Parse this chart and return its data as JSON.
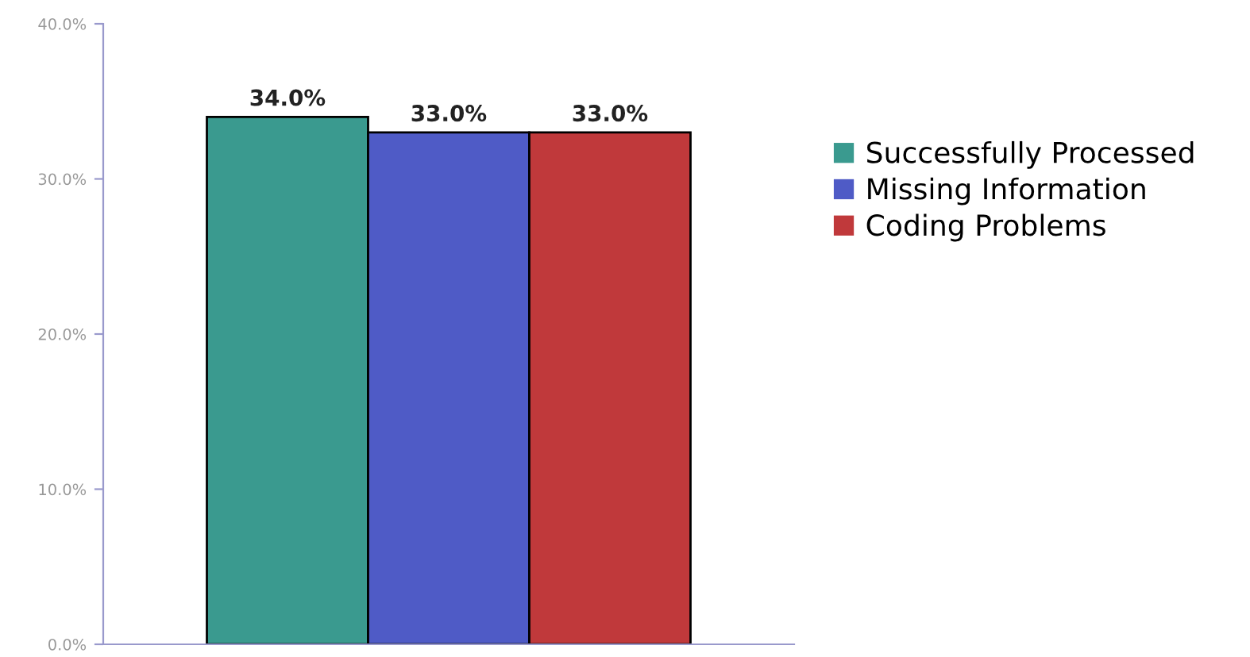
{
  "chart_data": {
    "type": "bar",
    "categories": [
      null
    ],
    "series": [
      {
        "name": "Successfully Processed",
        "color": "#3a9a8f",
        "values": [
          34
        ],
        "value_labels": [
          "34.0%"
        ]
      },
      {
        "name": "Missing Information",
        "color": "#4f5bc6",
        "values": [
          33
        ],
        "value_labels": [
          "33.0%"
        ]
      },
      {
        "name": "Coding Problems",
        "color": "#c0393b",
        "values": [
          33
        ],
        "value_labels": [
          "33.0%"
        ]
      }
    ],
    "ylim": [
      0,
      40
    ],
    "yticks": [
      {
        "value": 0,
        "label": "0.0%"
      },
      {
        "value": 10,
        "label": "10.0%"
      },
      {
        "value": 20,
        "label": "20.0%"
      },
      {
        "value": 30,
        "label": "30.0%"
      },
      {
        "value": 40,
        "label": "40.0%"
      }
    ],
    "grid": false,
    "legend": "right"
  }
}
